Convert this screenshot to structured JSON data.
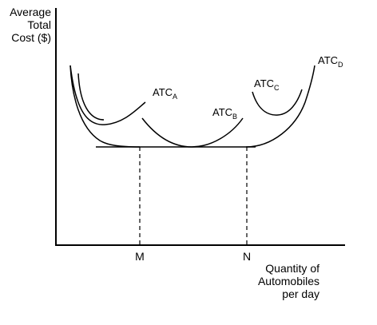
{
  "chart_data": {
    "type": "line",
    "title": "",
    "ylabel_lines": [
      "Average",
      "Total",
      "Cost ($)"
    ],
    "xlabel_lines": [
      "Quantity of",
      "Automobiles",
      "per day"
    ],
    "x_ticks": [
      "M",
      "N"
    ],
    "grid": false,
    "series": [
      {
        "name": "ATC",
        "sub": "A",
        "x": [
          0.05,
          0.08,
          0.14,
          0.2,
          0.26,
          0.33,
          0.38,
          0.45
        ],
        "y": [
          0.8,
          0.55,
          0.39,
          0.34,
          0.35,
          0.39,
          0.43,
          0.52
        ]
      },
      {
        "name": "ATC",
        "sub": "B",
        "x": [
          0.35,
          0.4,
          0.47,
          0.54,
          0.6,
          0.68,
          0.76,
          0.81
        ],
        "y": [
          0.5,
          0.36,
          0.28,
          0.26,
          0.27,
          0.31,
          0.38,
          0.46
        ]
      },
      {
        "name": "ATC",
        "sub": "C",
        "x": [
          0.8,
          0.83,
          0.87,
          0.92,
          0.96,
          1.0,
          1.04
        ],
        "y": [
          0.68,
          0.6,
          0.55,
          0.55,
          0.59,
          0.65,
          0.75
        ]
      },
      {
        "name": "ATC",
        "sub": "D",
        "x": [
          0.6,
          0.68,
          0.74,
          0.82,
          0.9,
          0.96,
          1.02,
          1.07,
          1.12
        ],
        "y": [
          0.26,
          0.26,
          0.26,
          0.26,
          0.28,
          0.33,
          0.42,
          0.56,
          0.8
        ]
      }
    ],
    "minimum_cost_segment": {
      "x_from": "M",
      "x_to": "N"
    }
  }
}
